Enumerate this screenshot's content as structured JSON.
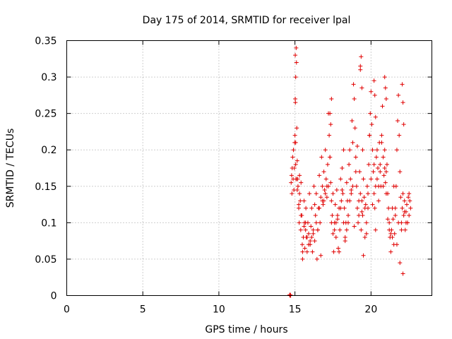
{
  "chart_data": {
    "type": "scatter",
    "title": "Day 175 of 2014, SRMTID for receiver lpal",
    "xlabel": "GPS time / hours",
    "ylabel": "SRMTID / TECUs",
    "xlim": [
      0,
      24
    ],
    "ylim": [
      0,
      0.35
    ],
    "xticks": [
      0,
      5,
      10,
      15,
      20
    ],
    "yticks": [
      0,
      0.05,
      0.1,
      0.15,
      0.2,
      0.25,
      0.3,
      0.35
    ],
    "grid": true,
    "marker": "+",
    "color": "#e00000",
    "series": [
      {
        "name": "SRMTID",
        "x": [
          14.65,
          14.68,
          14.7,
          14.72,
          14.75,
          14.78,
          14.8,
          14.82,
          14.85,
          14.88,
          14.9,
          14.93,
          14.96,
          14.98,
          15.0,
          15.02,
          15.05,
          15.08,
          15.1,
          15.12,
          15.15,
          15.18,
          15.2,
          15.25,
          15.28,
          15.3,
          15.35,
          15.38,
          15.4,
          15.45,
          15.48,
          15.5,
          15.55,
          15.6,
          15.62,
          15.65,
          15.7,
          15.72,
          15.75,
          15.8,
          15.85,
          15.9,
          15.95,
          16.0,
          16.05,
          16.1,
          16.15,
          16.2,
          16.25,
          16.3,
          16.35,
          16.4,
          16.45,
          16.5,
          16.55,
          16.6,
          16.65,
          16.7,
          16.75,
          16.8,
          16.85,
          16.9,
          16.95,
          17.0,
          17.05,
          17.1,
          17.15,
          17.2,
          17.25,
          17.3,
          17.35,
          17.4,
          17.45,
          17.5,
          17.55,
          17.6,
          17.65,
          17.7,
          17.75,
          17.8,
          17.85,
          17.9,
          17.95,
          18.0,
          18.05,
          18.1,
          18.15,
          18.2,
          18.25,
          18.3,
          18.35,
          18.4,
          18.45,
          18.5,
          18.55,
          18.6,
          18.65,
          18.7,
          18.75,
          18.8,
          18.85,
          18.9,
          18.95,
          19.0,
          19.05,
          19.1,
          19.15,
          19.2,
          19.25,
          19.3,
          19.35,
          19.4,
          19.45,
          19.5,
          19.55,
          19.6,
          19.65,
          19.7,
          19.75,
          19.8,
          19.85,
          19.9,
          19.95,
          20.0,
          20.05,
          20.1,
          20.15,
          20.2,
          20.25,
          20.3,
          20.35,
          20.4,
          20.45,
          20.5,
          20.55,
          20.6,
          20.65,
          20.7,
          20.75,
          20.8,
          20.85,
          20.9,
          20.95,
          21.0,
          21.05,
          21.1,
          21.15,
          21.2,
          21.25,
          21.3,
          21.35,
          21.4,
          21.45,
          21.5,
          21.55,
          21.6,
          21.65,
          21.7,
          21.75,
          21.8,
          21.85,
          21.9,
          21.95,
          22.0,
          22.05,
          22.1,
          22.15,
          22.2,
          22.25,
          22.3,
          22.35,
          22.4,
          22.45,
          22.5,
          22.55,
          22.6,
          15.05,
          15.1,
          15.15,
          15.25,
          15.4,
          15.6,
          15.8,
          16.0,
          16.2,
          16.4,
          16.6,
          16.8,
          17.0,
          17.2,
          17.4,
          17.6,
          17.8,
          18.0,
          18.2,
          18.4,
          18.6,
          18.8,
          19.0,
          19.2,
          19.4,
          19.6,
          19.8,
          20.0,
          20.2,
          20.4,
          20.6,
          20.8,
          21.0,
          21.2,
          21.4,
          21.6,
          21.8,
          22.0,
          22.2,
          22.4,
          15.3,
          15.5,
          15.7,
          15.9,
          16.1,
          16.3,
          16.5,
          16.7,
          16.9,
          17.1,
          17.3,
          17.5,
          17.7,
          17.9,
          18.1,
          18.3,
          18.5,
          18.7,
          18.9,
          19.1,
          19.3,
          19.5,
          19.7,
          19.9,
          20.1,
          20.3,
          20.5,
          20.7,
          20.9,
          21.1,
          21.3,
          21.5,
          21.7,
          21.9,
          22.1,
          22.3,
          22.5,
          15.02,
          15.03,
          15.05,
          15.07,
          17.3,
          17.35,
          17.4,
          19.3,
          19.35,
          19.4,
          19.45,
          20.2,
          20.25,
          20.3,
          20.9,
          20.95,
          21.0,
          22.05,
          22.1,
          22.15
        ],
        "y": [
          0.001,
          0.0,
          0.001,
          0.0,
          0.155,
          0.165,
          0.14,
          0.175,
          0.19,
          0.16,
          0.2,
          0.145,
          0.175,
          0.21,
          0.22,
          0.27,
          0.3,
          0.34,
          0.32,
          0.23,
          0.185,
          0.16,
          0.15,
          0.12,
          0.1,
          0.165,
          0.13,
          0.09,
          0.155,
          0.11,
          0.07,
          0.05,
          0.08,
          0.13,
          0.1,
          0.065,
          0.09,
          0.12,
          0.08,
          0.06,
          0.1,
          0.085,
          0.14,
          0.07,
          0.095,
          0.12,
          0.06,
          0.09,
          0.15,
          0.075,
          0.11,
          0.14,
          0.05,
          0.09,
          0.12,
          0.165,
          0.1,
          0.135,
          0.19,
          0.15,
          0.125,
          0.17,
          0.145,
          0.2,
          0.16,
          0.135,
          0.18,
          0.25,
          0.22,
          0.19,
          0.155,
          0.13,
          0.11,
          0.085,
          0.06,
          0.1,
          0.125,
          0.08,
          0.145,
          0.105,
          0.065,
          0.12,
          0.09,
          0.16,
          0.13,
          0.175,
          0.14,
          0.2,
          0.12,
          0.08,
          0.1,
          0.155,
          0.13,
          0.11,
          0.18,
          0.2,
          0.16,
          0.14,
          0.24,
          0.21,
          0.29,
          0.27,
          0.23,
          0.19,
          0.15,
          0.12,
          0.1,
          0.13,
          0.17,
          0.14,
          0.09,
          0.115,
          0.11,
          0.16,
          0.135,
          0.08,
          0.125,
          0.1,
          0.15,
          0.12,
          0.18,
          0.22,
          0.25,
          0.28,
          0.235,
          0.2,
          0.17,
          0.14,
          0.12,
          0.15,
          0.19,
          0.16,
          0.175,
          0.13,
          0.21,
          0.18,
          0.15,
          0.22,
          0.26,
          0.19,
          0.165,
          0.2,
          0.155,
          0.17,
          0.18,
          0.14,
          0.12,
          0.1,
          0.08,
          0.06,
          0.09,
          0.12,
          0.105,
          0.07,
          0.085,
          0.11,
          0.15,
          0.2,
          0.24,
          0.275,
          0.22,
          0.17,
          0.135,
          0.1,
          0.12,
          0.14,
          0.11,
          0.13,
          0.09,
          0.115,
          0.125,
          0.1,
          0.135,
          0.11,
          0.13,
          0.12,
          0.18,
          0.16,
          0.145,
          0.125,
          0.11,
          0.095,
          0.08,
          0.075,
          0.085,
          0.1,
          0.12,
          0.13,
          0.14,
          0.15,
          0.1,
          0.09,
          0.11,
          0.12,
          0.1,
          0.09,
          0.13,
          0.15,
          0.17,
          0.11,
          0.13,
          0.12,
          0.14,
          0.16,
          0.18,
          0.2,
          0.17,
          0.15,
          0.14,
          0.09,
          0.08,
          0.12,
          0.1,
          0.09,
          0.115,
          0.1,
          0.14,
          0.06,
          0.1,
          0.07,
          0.08,
          0.125,
          0.09,
          0.055,
          0.13,
          0.15,
          0.19,
          0.14,
          0.1,
          0.06,
          0.145,
          0.075,
          0.1,
          0.145,
          0.095,
          0.205,
          0.31,
          0.055,
          0.085,
          0.22,
          0.125,
          0.09,
          0.15,
          0.21,
          0.175,
          0.105,
          0.085,
          0.15,
          0.07,
          0.045,
          0.03,
          0.1,
          0.14,
          0.33,
          0.265,
          0.21,
          0.16,
          0.25,
          0.235,
          0.27,
          0.315,
          0.328,
          0.285,
          0.2,
          0.295,
          0.275,
          0.245,
          0.3,
          0.285,
          0.27,
          0.29,
          0.265,
          0.235
        ]
      }
    ]
  }
}
